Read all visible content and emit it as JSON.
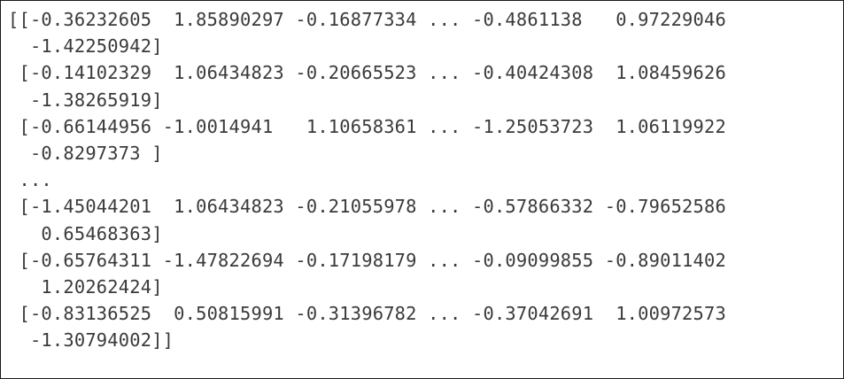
{
  "output": {
    "lines": [
      "[[-0.36232605  1.85890297 -0.16877334 ... -0.4861138   0.97229046",
      "  -1.42250942]",
      " [-0.14102329  1.06434823 -0.20665523 ... -0.40424308  1.08459626",
      "  -1.38265919]",
      " [-0.66144956 -1.0014941   1.10658361 ... -1.25053723  1.06119922",
      "  -0.8297373 ]",
      " ...",
      " [-1.45044201  1.06434823 -0.21055978 ... -0.57866332 -0.79652586",
      "   0.65468363]",
      " [-0.65764311 -1.47822694 -0.17198179 ... -0.09099855 -0.89011402",
      "   1.20262424]",
      " [-0.83136525  0.50815991 -0.31396782 ... -0.37042691  1.00972573",
      "  -1.30794002]]"
    ]
  },
  "colors": {
    "text": "#3a3a3a",
    "border": "#1a1a1a",
    "background": "#ffffff"
  }
}
